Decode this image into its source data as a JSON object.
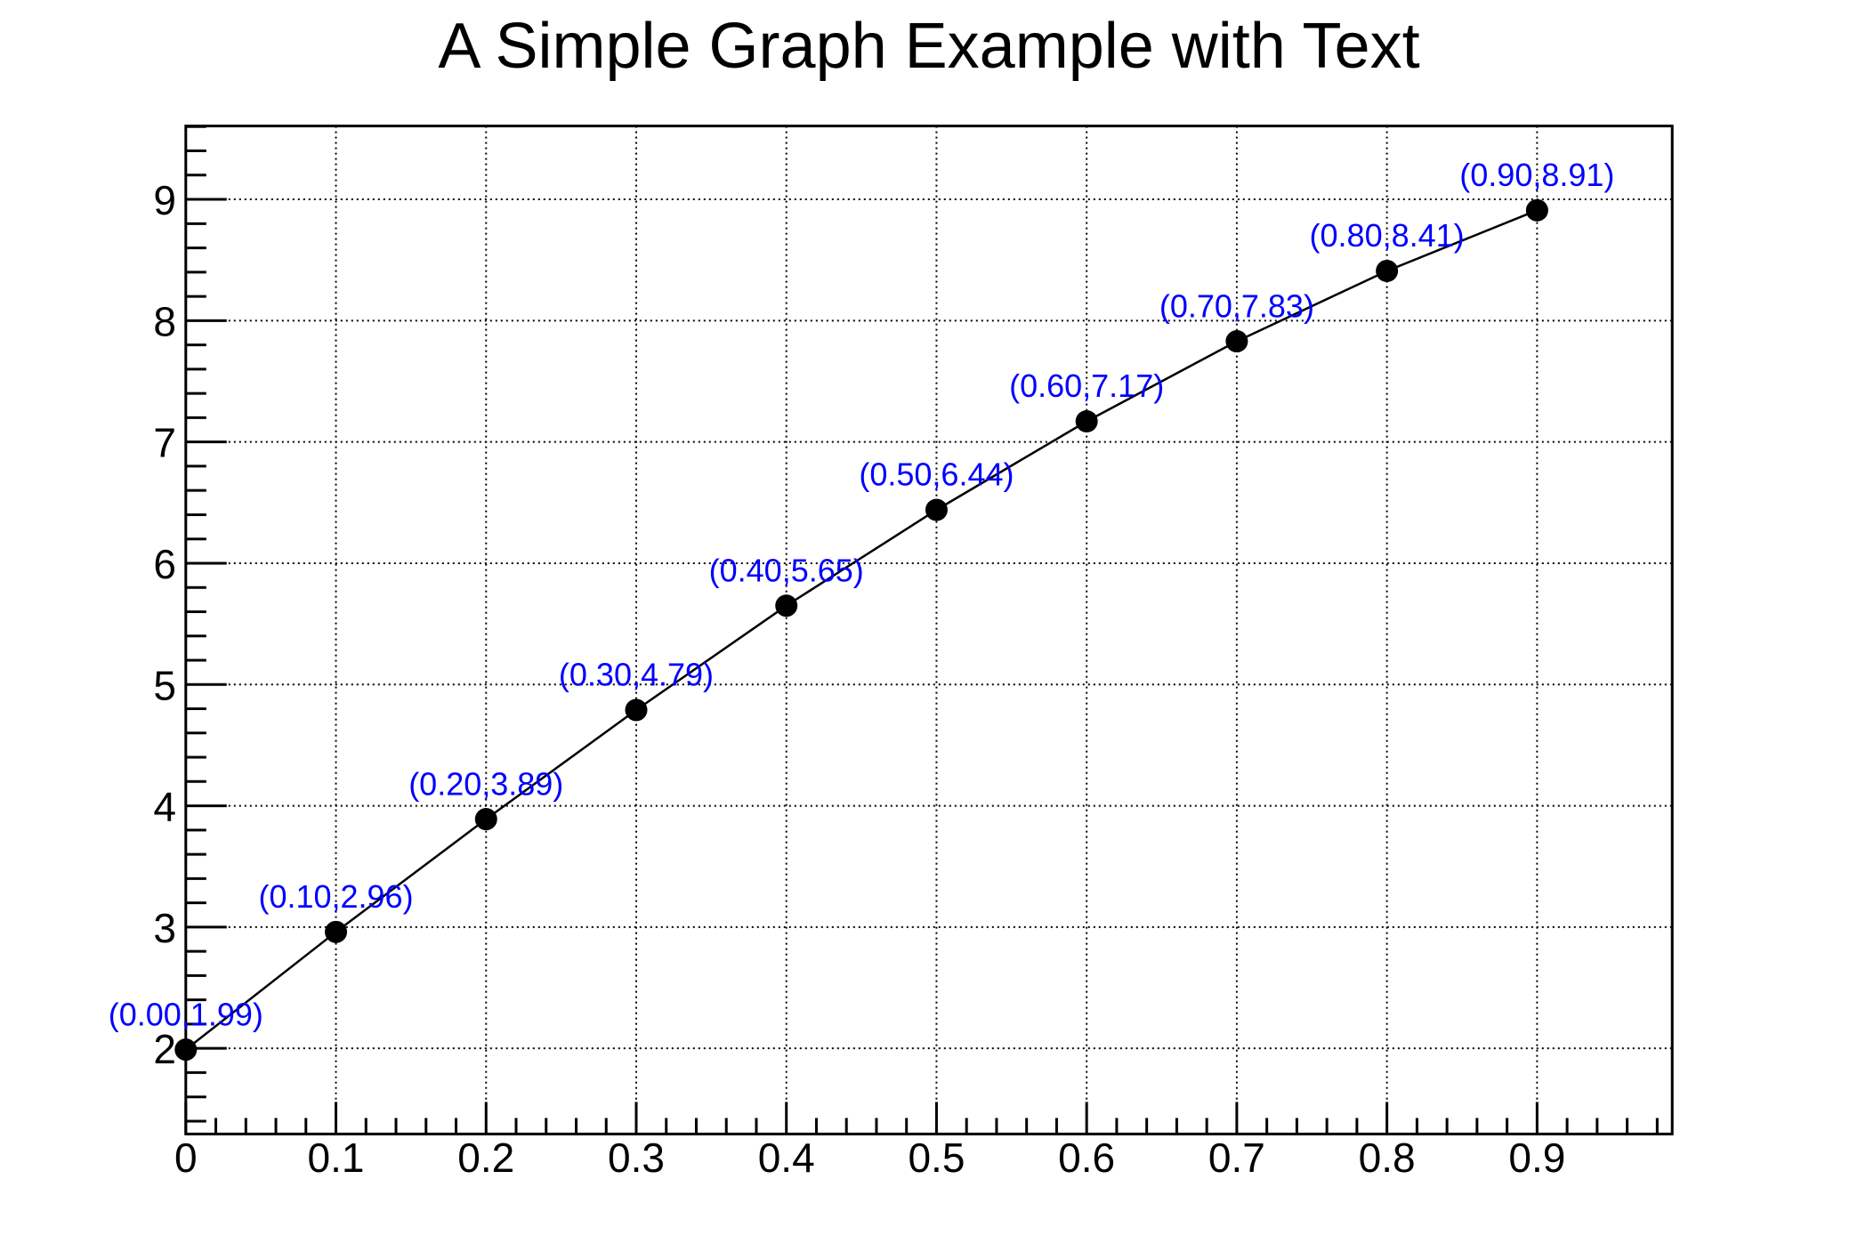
{
  "chart_data": {
    "type": "line",
    "title": "A Simple Graph Example with Text",
    "x": [
      0.0,
      0.1,
      0.2,
      0.3,
      0.4,
      0.5,
      0.6,
      0.7,
      0.8,
      0.9
    ],
    "y": [
      1.99,
      2.96,
      3.89,
      4.79,
      5.65,
      6.44,
      7.17,
      7.83,
      8.41,
      8.91
    ],
    "point_labels": [
      "(0.00,1.99)",
      "(0.10,2.96)",
      "(0.20,3.89)",
      "(0.30,4.79)",
      "(0.40,5.65)",
      "(0.50,6.44)",
      "(0.60,7.17)",
      "(0.70,7.83)",
      "(0.80,8.41)",
      "(0.90,8.91)"
    ],
    "point_label_offset_y": 0.2,
    "xlim": [
      0.0,
      0.99
    ],
    "ylim": [
      1.294,
      9.605
    ],
    "x_major_ticks": [
      0.0,
      0.1,
      0.2,
      0.3,
      0.4,
      0.5,
      0.6,
      0.7,
      0.8,
      0.9
    ],
    "x_tick_labels": [
      "0",
      "0.1",
      "0.2",
      "0.3",
      "0.4",
      "0.5",
      "0.6",
      "0.7",
      "0.8",
      "0.9"
    ],
    "x_minor_step": 0.02,
    "y_major_ticks": [
      2,
      3,
      4,
      5,
      6,
      7,
      8,
      9
    ],
    "y_tick_labels": [
      "2",
      "3",
      "4",
      "5",
      "6",
      "7",
      "8",
      "9"
    ],
    "y_minor_step": 0.2,
    "grid": "dotted",
    "grid_on": true,
    "legend": "none",
    "marker_style": "filled-circle",
    "colors": {
      "background": "#ffffff",
      "axis": "#000000",
      "grid": "#000000",
      "line": "#000000",
      "marker": "#000000",
      "point_label": "#0000ff",
      "title": "#000000"
    }
  }
}
